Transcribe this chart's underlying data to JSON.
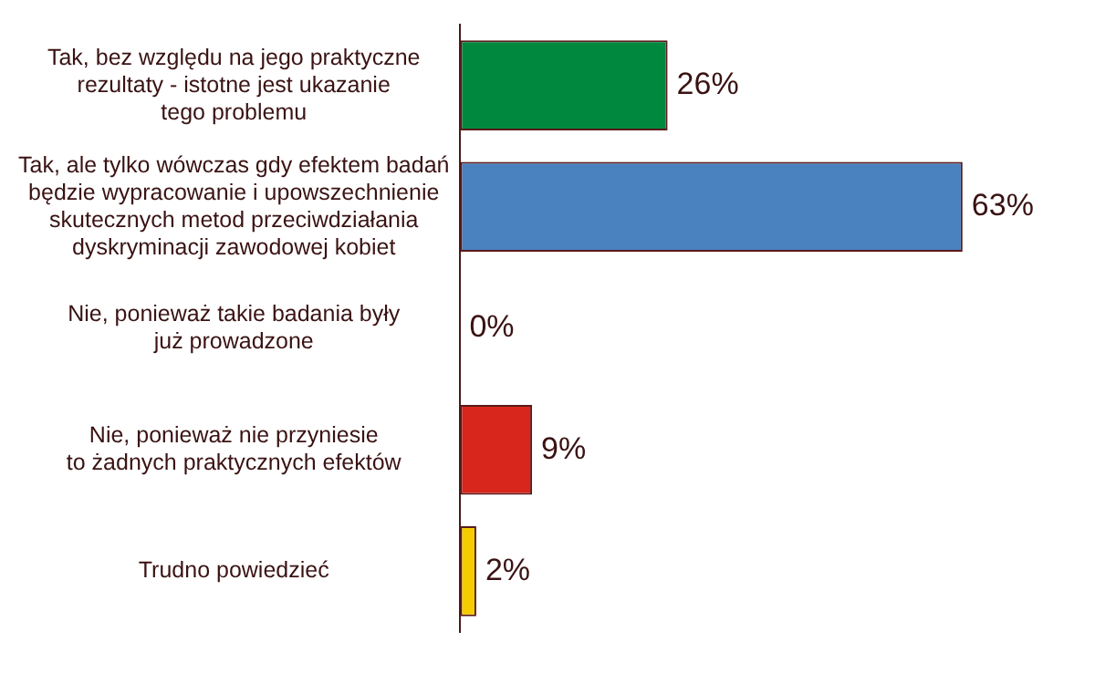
{
  "chart_data": {
    "type": "bar",
    "orientation": "horizontal",
    "categories": [
      "Tak, bez względu na jego praktyczne\nrezultaty - istotne jest ukazanie\ntego problemu",
      "Tak, ale tylko wówczas gdy efektem badań\nbędzie wypracowanie i upowszechnienie\nskutecznych metod przeciwdziałania\ndyskryminacji zawodowej kobiet",
      "Nie, ponieważ takie badania były\njuż prowadzone",
      "Nie, ponieważ nie przyniesie\nto żadnych praktycznych efektów",
      "Trudno powiedzieć"
    ],
    "values": [
      26,
      63,
      0,
      9,
      2
    ],
    "colors": [
      "#00883f",
      "#4a81bf",
      "#4a81bf",
      "#d9261c",
      "#f5cc00"
    ],
    "value_labels": [
      "26%",
      "63%",
      "0%",
      "9%",
      "2%"
    ],
    "tick_labels": "y",
    "grid": false,
    "legend": false
  }
}
